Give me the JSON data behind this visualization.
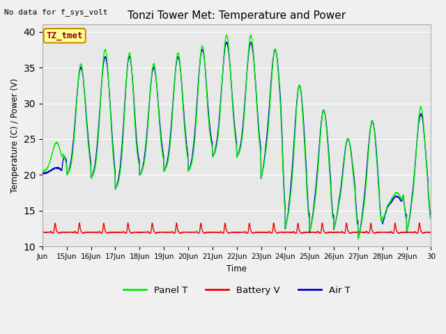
{
  "title": "Tonzi Tower Met: Temperature and Power",
  "ylabel": "Temperature (C) / Power (V)",
  "xlabel": "Time",
  "no_data_text": "No data for f_sys_volt",
  "annotation_text": "TZ_tmet",
  "ylim": [
    10,
    41
  ],
  "yticks": [
    10,
    15,
    20,
    25,
    30,
    35,
    40
  ],
  "bg_color": "#e8e8e8",
  "fig_color": "#f0f0f0",
  "panel_t_color": "#00ee00",
  "battery_v_color": "#ee0000",
  "air_t_color": "#0000cc",
  "legend_labels": [
    "Panel T",
    "Battery V",
    "Air T"
  ],
  "x_tick_labels": [
    "Jun",
    "15Jun",
    "16Jun",
    "17Jun",
    "18Jun",
    "19Jun",
    "20Jun",
    "21Jun",
    "22Jun",
    "23Jun",
    "24Jun",
    "25Jun",
    "26Jun",
    "27Jun",
    "28Jun",
    "29Jun",
    "30"
  ],
  "num_days": 16,
  "pts_per_day": 144
}
